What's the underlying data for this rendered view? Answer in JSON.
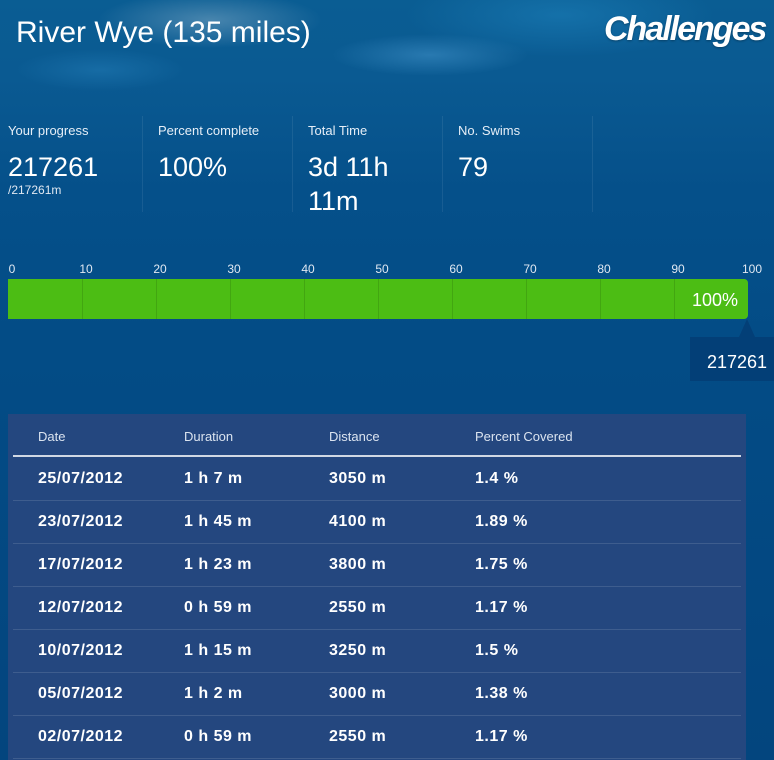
{
  "header": {
    "title": "River Wye (135 miles)",
    "logo_text": "Challenges"
  },
  "stats": [
    {
      "label": "Your progress",
      "value": "217261",
      "sub": "/217261m"
    },
    {
      "label": "Percent complete",
      "value": "100%"
    },
    {
      "label": "Total Time",
      "value": "3d 11h",
      "value2": "11m"
    },
    {
      "label": "No. Swims",
      "value": "79"
    }
  ],
  "progress": {
    "scale_ticks": [
      "0",
      "10",
      "20",
      "30",
      "40",
      "50",
      "60",
      "70",
      "80",
      "90",
      "100"
    ],
    "percent": 100,
    "percent_label": "100%",
    "marker_label": "217261",
    "fill_color": "#4cbd14"
  },
  "table": {
    "headers": {
      "date": "Date",
      "duration": "Duration",
      "distance": "Distance",
      "percent": "Percent Covered"
    },
    "rows": [
      {
        "date": "25/07/2012",
        "duration": "1 h 7 m",
        "distance": "3050 m",
        "percent": "1.4 %"
      },
      {
        "date": "23/07/2012",
        "duration": "1 h 45 m",
        "distance": "4100 m",
        "percent": "1.89 %"
      },
      {
        "date": "17/07/2012",
        "duration": "1 h 23 m",
        "distance": "3800 m",
        "percent": "1.75 %"
      },
      {
        "date": "12/07/2012",
        "duration": "0 h 59 m",
        "distance": "2550 m",
        "percent": "1.17 %"
      },
      {
        "date": "10/07/2012",
        "duration": "1 h 15 m",
        "distance": "3250 m",
        "percent": "1.5 %"
      },
      {
        "date": "05/07/2012",
        "duration": "1 h 2 m",
        "distance": "3000 m",
        "percent": "1.38 %"
      },
      {
        "date": "02/07/2012",
        "duration": "0 h 59 m",
        "distance": "2550 m",
        "percent": "1.17 %"
      }
    ]
  }
}
